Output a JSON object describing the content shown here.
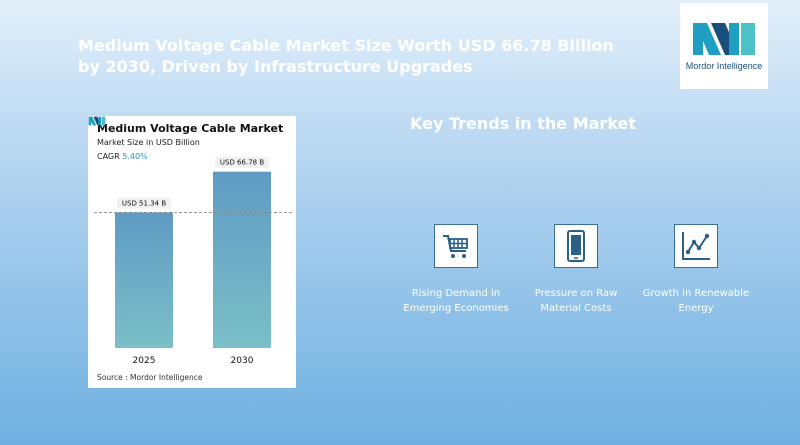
{
  "headline": "Medium Voltage Cable Market Size Worth USD 66.78 Billion by 2030, Driven by Infrastructure Upgrades",
  "logo": {
    "text": "Mordor Intelligence"
  },
  "card": {
    "title": "Medium Voltage Cable Market",
    "subtitle": "Market Size in USD Billion",
    "cagr_label": "CAGR",
    "cagr_value": "5.40%",
    "source": "Source : Mordor Intelligence"
  },
  "chart_data": {
    "type": "bar",
    "title": "Medium Voltage Cable Market",
    "ylabel": "Market Size in USD Billion",
    "categories": [
      "2025",
      "2030"
    ],
    "values": [
      51.34,
      66.78
    ],
    "data_labels": [
      "USD 51.34 B",
      "USD 66.78 B"
    ],
    "ylim": [
      0,
      75
    ],
    "grid": false,
    "bar_gradient": [
      "#5f9bc4",
      "#7bbfc7"
    ]
  },
  "trends": {
    "title": "Key Trends in the Market",
    "items": [
      {
        "label": "Rising Demand in Emerging Economies",
        "icon": "shopping-cart-icon"
      },
      {
        "label": "Pressure on Raw Material Costs",
        "icon": "smartphone-icon"
      },
      {
        "label": "Growth in Renewable Energy",
        "icon": "line-chart-icon"
      }
    ]
  }
}
